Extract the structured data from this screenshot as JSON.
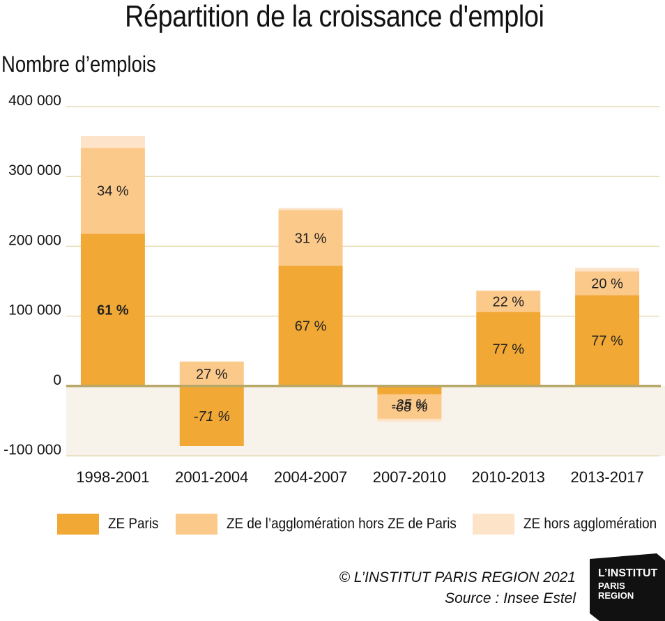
{
  "title": "Répartition de la croissance d'emploi",
  "y_axis_title": "Nombre d’emplois",
  "chart_data": {
    "type": "bar",
    "stacked": true,
    "title": "Répartition de la croissance d'emploi",
    "ylabel": "Nombre d’emplois",
    "ylim": [
      -100000,
      400000
    ],
    "yticks": [
      400000,
      300000,
      200000,
      100000,
      0,
      -100000
    ],
    "ytick_labels": [
      "400 000",
      "300 000",
      "200 000",
      "100 000",
      "0",
      "-100 000"
    ],
    "categories": [
      "1998-2001",
      "2001-2004",
      "2004-2007",
      "2007-2010",
      "2010-2013",
      "2013-2017"
    ],
    "series": [
      {
        "name": "ZE Paris",
        "color": "#f2a835",
        "values": [
          218000,
          -86000,
          172000,
          -12000,
          106000,
          130000
        ]
      },
      {
        "name": "ZE de l’agglomération hors ZE de Paris",
        "color": "#fbc98a",
        "values": [
          123000,
          35000,
          80000,
          -35000,
          30000,
          34000
        ]
      },
      {
        "name": "ZE hors agglomération",
        "color": "#fde4c9",
        "values": [
          17000,
          0,
          3000,
          -4000,
          1000,
          5000
        ]
      }
    ],
    "labels": [
      {
        "category": "1998-2001",
        "series": "ZE Paris",
        "text": "61 %",
        "style": "bold"
      },
      {
        "category": "1998-2001",
        "series": "ZE de l’agglomération hors ZE de Paris",
        "text": "34 %",
        "style": "normal"
      },
      {
        "category": "2001-2004",
        "series": "ZE Paris",
        "text": "-71 %",
        "style": "italic"
      },
      {
        "category": "2001-2004",
        "series": "ZE de l’agglomération hors ZE de Paris",
        "text": "27 %",
        "style": "normal"
      },
      {
        "category": "2004-2007",
        "series": "ZE Paris",
        "text": "67 %",
        "style": "normal"
      },
      {
        "category": "2004-2007",
        "series": "ZE de l’agglomération hors ZE de Paris",
        "text": "31 %",
        "style": "normal"
      },
      {
        "category": "2007-2010",
        "series": "ZE de l’agglomération hors ZE de Paris",
        "text": "-68 %",
        "style": "italic"
      },
      {
        "category": "2007-2010",
        "series": "ZE Paris",
        "text": "-25 %",
        "style": "italic"
      },
      {
        "category": "2010-2013",
        "series": "ZE Paris",
        "text": "77 %",
        "style": "normal"
      },
      {
        "category": "2010-2013",
        "series": "ZE de l’agglomération hors ZE de Paris",
        "text": "22 %",
        "style": "normal"
      },
      {
        "category": "2013-2017",
        "series": "ZE Paris",
        "text": "77 %",
        "style": "normal"
      },
      {
        "category": "2013-2017",
        "series": "ZE de l’agglomération hors ZE de Paris",
        "text": "20 %",
        "style": "normal"
      }
    ],
    "grid": true,
    "legend": "bottom",
    "negative_region_color": "#f7f3ea",
    "zero_line_color": "#b8a868",
    "grid_color": "#e6dcb4"
  },
  "credit": {
    "copyright": "© L’INSTITUT PARIS REGION 2021",
    "source": "Source :  Insee Estel"
  },
  "logo": {
    "line1": "L’INSTITUT",
    "line2": "PARIS",
    "line3": "REGION"
  }
}
